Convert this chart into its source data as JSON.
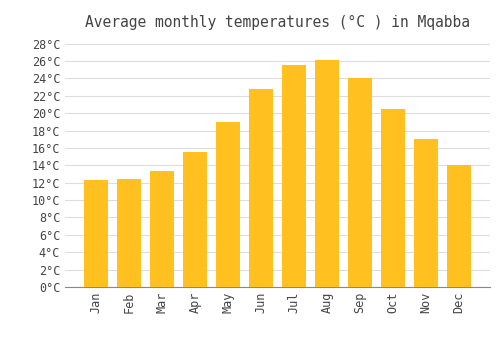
{
  "title": "Average monthly temperatures (°C ) in Mqabba",
  "months": [
    "Jan",
    "Feb",
    "Mar",
    "Apr",
    "May",
    "Jun",
    "Jul",
    "Aug",
    "Sep",
    "Oct",
    "Nov",
    "Dec"
  ],
  "values": [
    12.3,
    12.4,
    13.4,
    15.5,
    19.0,
    22.8,
    25.6,
    26.1,
    24.0,
    20.5,
    17.0,
    14.0
  ],
  "bar_color_top": "#FFC020",
  "bar_color_bottom": "#F5A800",
  "background_color": "#FFFFFF",
  "grid_color": "#DDDDDD",
  "text_color": "#444444",
  "ylim_max": 29,
  "ytick_step": 2,
  "title_fontsize": 10.5,
  "tick_fontsize": 8.5
}
